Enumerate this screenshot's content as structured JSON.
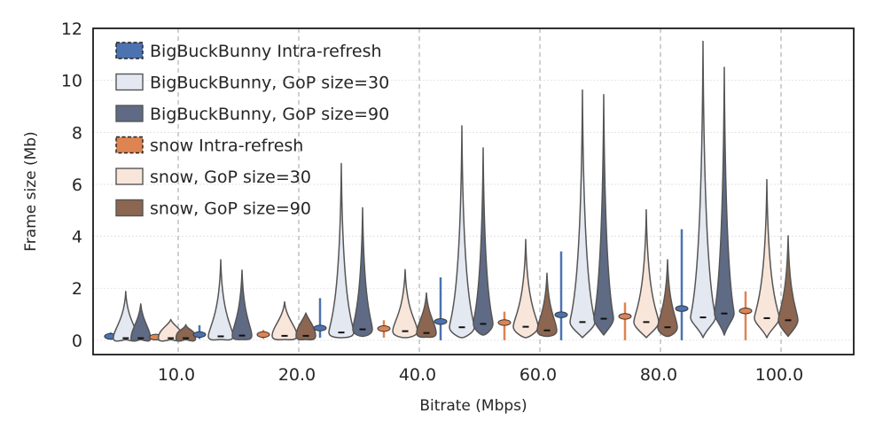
{
  "chart_data": {
    "type": "violin",
    "xlabel": "Bitrate (Mbps)",
    "ylabel": "Frame size (Mb)",
    "ylim": [
      -0.55,
      12
    ],
    "yticks": [
      "0",
      "2",
      "4",
      "6",
      "8",
      "10",
      "12"
    ],
    "categories": [
      "10.0",
      "20.0",
      "40.0",
      "60.0",
      "80.0",
      "100.0"
    ],
    "grid": "horizontal dotted; dashed vertical separators between groups",
    "legend_position": "top-left",
    "colors": {
      "bbb_intra": "#4c72b0",
      "bbb_gop30": "#e3e8f1",
      "bbb_gop90": "#5f6b85",
      "snow_intra": "#dd8452",
      "snow_gop30": "#f9e6da",
      "snow_gop90": "#8c6650",
      "outline": "#555555",
      "grid": "#dddddd",
      "separator": "#b0b0b0"
    },
    "series": [
      {
        "name": "BigBuckBunny Intra-refresh",
        "color_key": "bbb_intra",
        "dashed": true,
        "intra": true,
        "min": [
          0.02,
          0.05,
          0.1,
          0.0,
          0.0,
          0.0
        ],
        "max": [
          0.3,
          0.58,
          1.62,
          2.42,
          3.42,
          4.27
        ],
        "median": [
          0.15,
          0.22,
          0.47,
          0.72,
          0.98,
          1.22
        ]
      },
      {
        "name": "BigBuckBunny, GoP size=30",
        "color_key": "bbb_gop30",
        "dashed": false,
        "intra": false,
        "min": [
          0.02,
          0.03,
          0.1,
          0.1,
          0.1,
          0.1
        ],
        "max": [
          1.88,
          3.1,
          6.8,
          8.25,
          9.63,
          11.5
        ],
        "median": [
          0.08,
          0.15,
          0.3,
          0.5,
          0.7,
          0.88
        ]
      },
      {
        "name": "BigBuckBunny, GoP size=90",
        "color_key": "bbb_gop90",
        "dashed": false,
        "intra": false,
        "min": [
          0.02,
          0.03,
          0.15,
          0.2,
          0.2,
          0.2
        ],
        "max": [
          1.4,
          2.7,
          5.1,
          7.4,
          9.45,
          10.5
        ],
        "median": [
          0.08,
          0.18,
          0.42,
          0.63,
          0.83,
          1.03
        ]
      },
      {
        "name": "snow Intra-refresh",
        "color_key": "snow_intra",
        "dashed": true,
        "intra": true,
        "min": [
          0.02,
          0.05,
          0.1,
          0.0,
          0.0,
          0.0
        ],
        "max": [
          0.25,
          0.4,
          0.77,
          1.1,
          1.45,
          1.88
        ],
        "median": [
          0.12,
          0.22,
          0.45,
          0.68,
          0.92,
          1.13
        ]
      },
      {
        "name": "snow, GoP size=30",
        "color_key": "snow_gop30",
        "dashed": false,
        "intra": false,
        "min": [
          0.02,
          0.03,
          0.1,
          0.1,
          0.1,
          0.1
        ],
        "max": [
          0.8,
          1.48,
          2.72,
          3.88,
          5.02,
          6.18
        ],
        "median": [
          0.08,
          0.17,
          0.35,
          0.52,
          0.7,
          0.85
        ]
      },
      {
        "name": "snow, GoP size=90",
        "color_key": "snow_gop90",
        "dashed": false,
        "intra": false,
        "min": [
          0.02,
          0.03,
          0.12,
          0.15,
          0.15,
          0.15
        ],
        "max": [
          0.6,
          1.05,
          1.82,
          2.58,
          3.1,
          4.02
        ],
        "median": [
          0.08,
          0.17,
          0.28,
          0.38,
          0.5,
          0.77
        ]
      }
    ]
  }
}
